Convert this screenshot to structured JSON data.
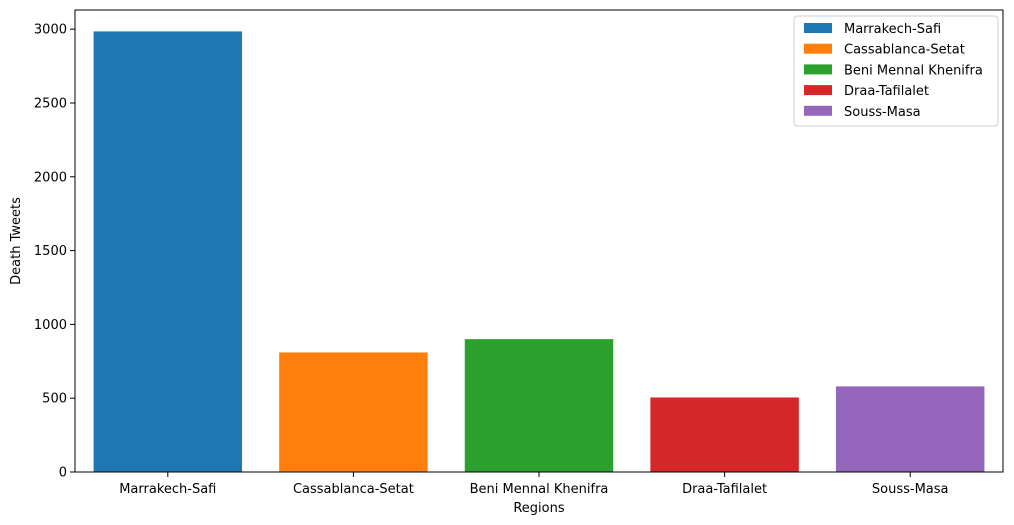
{
  "chart_data": {
    "type": "bar",
    "categories": [
      "Marrakech-Safi",
      "Cassablanca-Setat",
      "Beni Mennal Khenifra",
      "Draa-Tafilalet",
      "Souss-Masa"
    ],
    "values": [
      2985,
      810,
      900,
      505,
      580
    ],
    "colors": [
      "#1f77b4",
      "#ff7f0e",
      "#2ca02c",
      "#d62728",
      "#9467bd"
    ],
    "xlabel": "Regions",
    "ylabel": "Death Tweets",
    "ylim": [
      0,
      3130
    ],
    "yticks": [
      0,
      500,
      1000,
      1500,
      2000,
      2500,
      3000
    ],
    "grid": false,
    "legend": {
      "position": "top-right",
      "entries": [
        "Marrakech-Safi",
        "Cassablanca-Setat",
        "Beni Mennal Khenifra",
        "Draa-Tafilalet",
        "Souss-Masa"
      ]
    }
  }
}
